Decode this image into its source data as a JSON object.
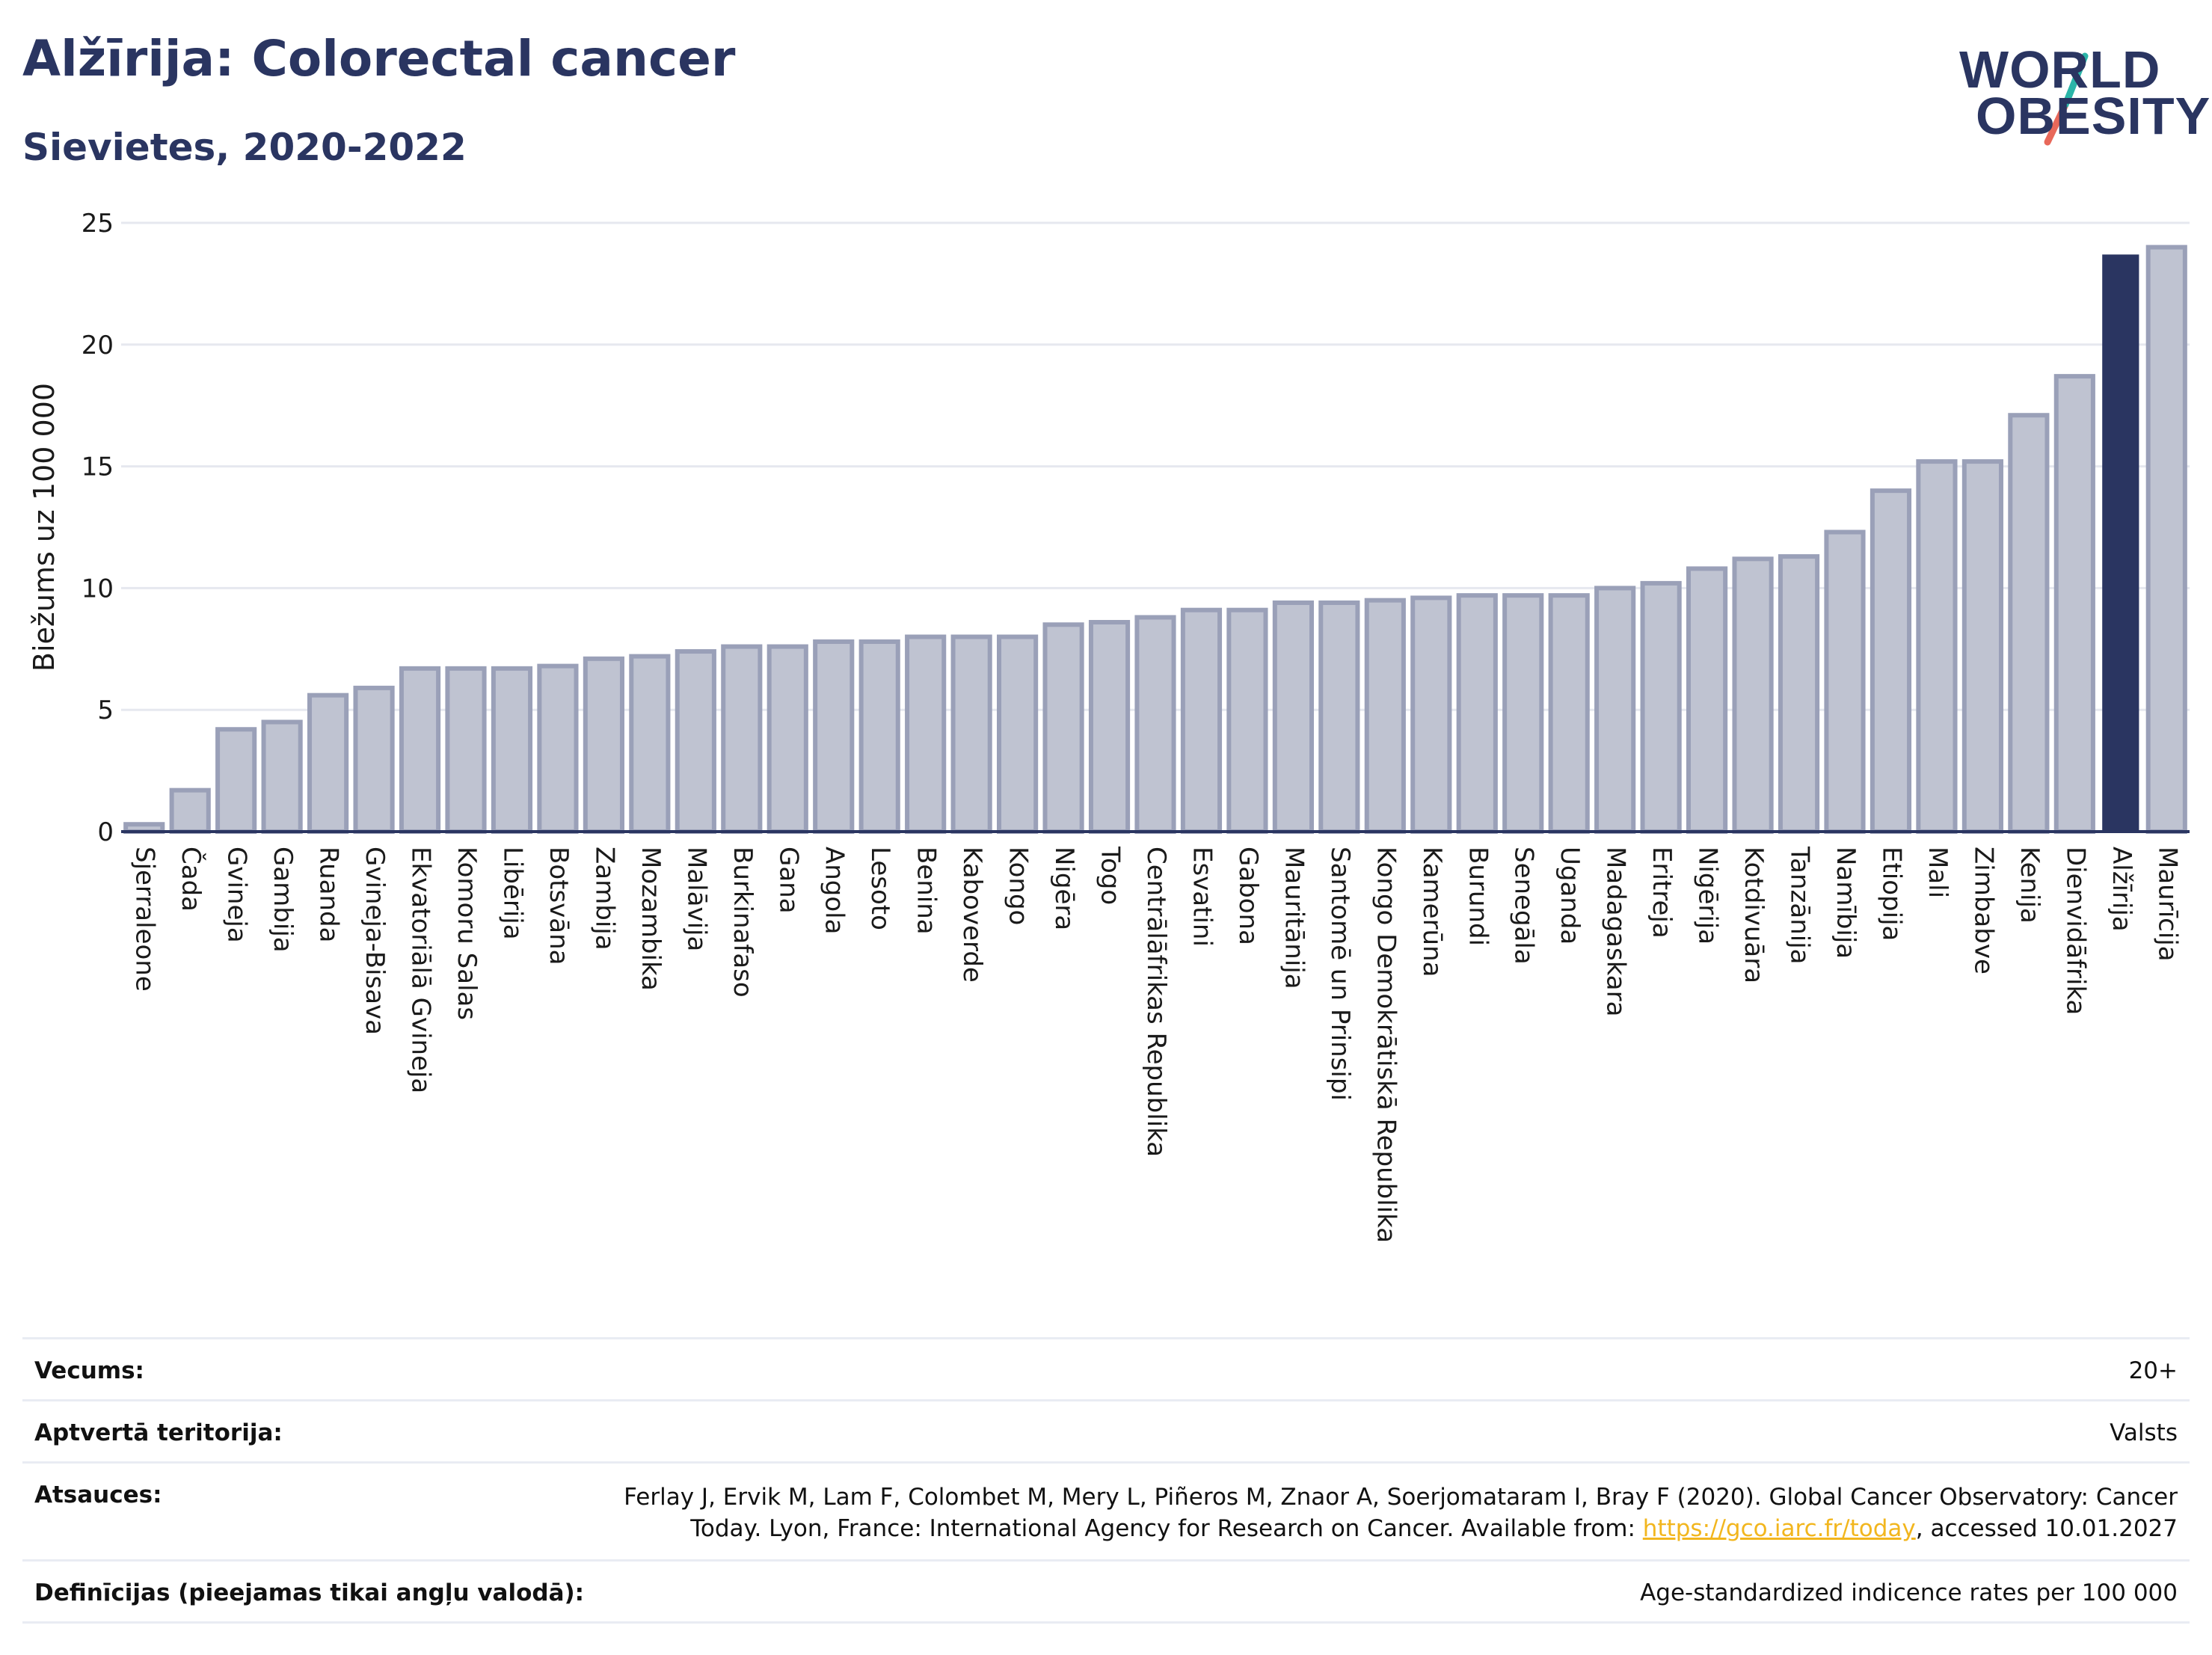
{
  "header": {
    "title": "Alžīrija: Colorectal cancer",
    "subtitle": "Sievietes, 2020-2022"
  },
  "logo": {
    "line1": "WORLD",
    "line2": "OBESITY",
    "colors": {
      "text": "#2a3561",
      "slash_top": "#2bb5a8",
      "slash_bottom": "#e8685a"
    }
  },
  "colors": {
    "bar_fill": "#bfc3d1",
    "bar_stroke": "#9aa0b8",
    "highlight": "#2a3561",
    "grid": "#e6e8ef",
    "axis": "#2a3561"
  },
  "chart_data": {
    "type": "bar",
    "ylabel": "Biežums uz 100 000",
    "ylim": [
      0,
      25
    ],
    "yticks": [
      0,
      5,
      10,
      15,
      20,
      25
    ],
    "grid": true,
    "highlight": "Alžīrija",
    "categories": [
      "Sjerraleone",
      "Čada",
      "Gvineja",
      "Gambija",
      "Ruanda",
      "Gvineja-Bisava",
      "Ekvatoriālā Gvineja",
      "Komoru Salas",
      "Libērija",
      "Botsvāna",
      "Zambija",
      "Mozambika",
      "Malāvija",
      "Burkinafaso",
      "Gana",
      "Angola",
      "Lesoto",
      "Benina",
      "Kaboverde",
      "Kongo",
      "Nigēra",
      "Togo",
      "Centrālāfrikas Republika",
      "Esvatini",
      "Gabona",
      "Mauritānija",
      "Santomē un Prinsipi",
      "Kongo Demokrātiskā Republika",
      "Kamerūna",
      "Burundi",
      "Senegāla",
      "Uganda",
      "Madagaskara",
      "Eritreja",
      "Nigērija",
      "Kotdivuāra",
      "Tanzānija",
      "Namībija",
      "Etiopija",
      "Mali",
      "Zimbabve",
      "Kenija",
      "Dienvidāfrika",
      "Alžīrija",
      "Maurīcija"
    ],
    "values": [
      0.3,
      1.7,
      4.2,
      4.5,
      5.6,
      5.9,
      6.7,
      6.7,
      6.7,
      6.8,
      7.1,
      7.2,
      7.4,
      7.6,
      7.6,
      7.8,
      7.8,
      8.0,
      8.0,
      8.0,
      8.5,
      8.6,
      8.8,
      9.1,
      9.1,
      9.4,
      9.4,
      9.5,
      9.6,
      9.7,
      9.7,
      9.7,
      10.0,
      10.2,
      10.8,
      11.2,
      11.3,
      12.3,
      14.0,
      15.2,
      15.2,
      17.1,
      18.7,
      23.7,
      24.0
    ]
  },
  "meta": {
    "age_label": "Vecums:",
    "age_value": "20+",
    "coverage_label": "Aptvertā teritorija:",
    "coverage_value": "Valsts",
    "refs_label": "Atsauces:",
    "refs_line1": "Ferlay J, Ervik M, Lam F, Colombet M, Mery L, Piñeros M, Znaor A, Soerjomataram I, Bray F (2020). Global Cancer Observatory: Cancer",
    "refs_line2_pre": "Today. Lyon, France: International Agency for Research on Cancer. Available from: ",
    "refs_link": "https://gco.iarc.fr/today",
    "refs_line2_post": ", accessed 10.01.2027",
    "def_label": "Definīcijas (pieejamas tikai angļu valodā):",
    "def_value": "Age-standardized indicence rates per 100 000"
  }
}
